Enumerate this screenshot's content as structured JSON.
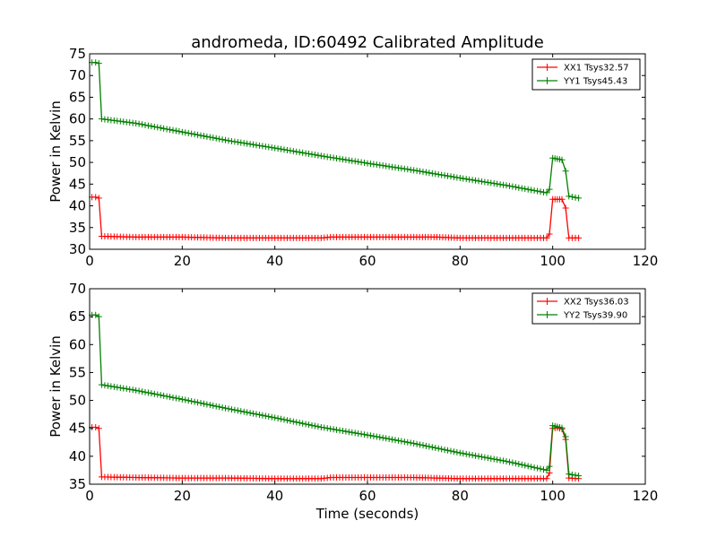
{
  "figure": {
    "title": "andromeda, ID:60492 Calibrated Amplitude",
    "xlabel": "Time (seconds)"
  },
  "chart_data": [
    {
      "type": "line",
      "title": "andromeda, ID:60492 Calibrated Amplitude",
      "xlabel": "",
      "ylabel": "Power in Kelvin",
      "xlim": [
        0,
        120
      ],
      "ylim": [
        30,
        75
      ],
      "xticks": [
        0,
        20,
        40,
        60,
        80,
        100,
        120
      ],
      "yticks": [
        30,
        35,
        40,
        45,
        50,
        55,
        60,
        65,
        70,
        75
      ],
      "grid": false,
      "legend_position": "top-right",
      "series": [
        {
          "name": "XX1 Tsys32.57",
          "color": "#ff0000",
          "marker": "plus",
          "x": [
            0.5,
            1.3,
            2.0,
            2.6,
            10,
            20,
            30,
            40,
            50,
            52,
            60,
            70,
            75,
            80,
            90,
            98.7,
            99.3,
            100.0,
            101.0,
            102.0,
            102.8,
            103.5,
            105.6
          ],
          "y": [
            42.0,
            42.0,
            41.8,
            33.0,
            32.8,
            32.8,
            32.6,
            32.6,
            32.6,
            32.8,
            32.8,
            32.8,
            32.8,
            32.6,
            32.6,
            32.6,
            33.5,
            41.5,
            41.5,
            41.5,
            39.5,
            32.6,
            32.6
          ]
        },
        {
          "name": "YY1 Tsys45.43",
          "color": "#008000",
          "marker": "plus",
          "x": [
            0.5,
            1.3,
            2.0,
            2.6,
            10,
            20,
            30,
            40,
            50,
            60,
            70,
            80,
            90,
            98.7,
            99.3,
            100.0,
            101.0,
            102.0,
            102.8,
            103.5,
            105.6
          ],
          "y": [
            73.0,
            73.0,
            72.8,
            60.0,
            59.0,
            57.0,
            55.0,
            53.3,
            51.5,
            49.8,
            48.2,
            46.4,
            44.7,
            43.0,
            43.8,
            51.0,
            50.8,
            50.6,
            48.0,
            42.2,
            41.8
          ]
        }
      ]
    },
    {
      "type": "line",
      "title": "",
      "xlabel": "Time (seconds)",
      "ylabel": "Power in Kelvin",
      "xlim": [
        0,
        120
      ],
      "ylim": [
        35,
        70
      ],
      "xticks": [
        0,
        20,
        40,
        60,
        80,
        100,
        120
      ],
      "yticks": [
        35,
        40,
        45,
        50,
        55,
        60,
        65,
        70
      ],
      "grid": false,
      "legend_position": "top-right",
      "series": [
        {
          "name": "XX2 Tsys36.03",
          "color": "#ff0000",
          "marker": "plus",
          "x": [
            0.5,
            1.3,
            2.0,
            2.6,
            10,
            20,
            30,
            40,
            50,
            52,
            60,
            70,
            75,
            80,
            90,
            98.7,
            99.3,
            100.0,
            101.0,
            102.0,
            102.8,
            103.5,
            105.6
          ],
          "y": [
            45.2,
            45.2,
            45.0,
            36.3,
            36.2,
            36.1,
            36.1,
            36.0,
            36.0,
            36.2,
            36.2,
            36.2,
            36.1,
            36.0,
            36.0,
            36.0,
            37.0,
            45.0,
            45.1,
            44.9,
            43.0,
            36.1,
            36.0
          ]
        },
        {
          "name": "YY2 Tsys39.90",
          "color": "#008000",
          "marker": "plus",
          "x": [
            0.5,
            1.3,
            2.0,
            2.6,
            10,
            20,
            30,
            40,
            50,
            60,
            70,
            80,
            90,
            98.7,
            99.3,
            100.0,
            101.0,
            102.0,
            102.8,
            103.5,
            105.6
          ],
          "y": [
            65.3,
            65.3,
            65.0,
            52.8,
            51.8,
            50.2,
            48.5,
            46.9,
            45.2,
            43.8,
            42.3,
            40.6,
            39.1,
            37.5,
            38.2,
            45.5,
            45.3,
            45.1,
            43.5,
            36.8,
            36.5
          ]
        }
      ]
    }
  ]
}
